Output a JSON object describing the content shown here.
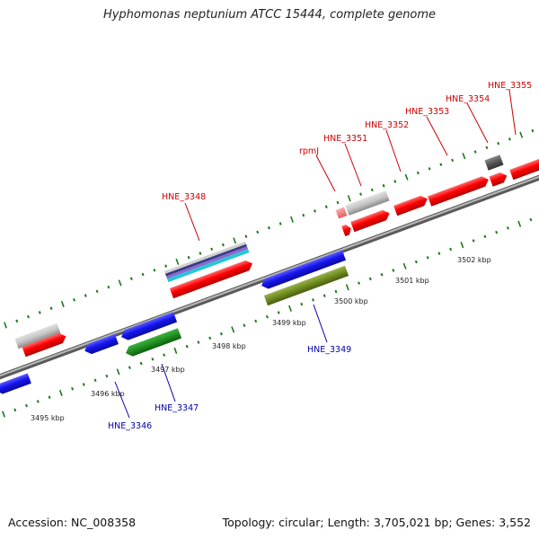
{
  "header": {
    "title": "Hyphomonas neptunium ATCC 15444, complete genome"
  },
  "footer": {
    "accession": "Accession: NC_008358",
    "summary": "Topology: circular; Length: 3,705,021 bp; Genes: 3,552"
  },
  "colors": {
    "forward_gene": "#ff0000",
    "reverse_gene": "#1515e0",
    "rna_gene": "#bbbbbb",
    "olive_gene": "#708b1e",
    "green_gene": "#1f8f1f",
    "dark_gene": "#555555",
    "tick": "#1a7a1a",
    "forward_label": "#cc0000",
    "reverse_label": "#0000aa",
    "backbone": "#8a8a8a"
  },
  "kbp_labels": [
    "3495 kbp",
    "3496 kbp",
    "3497 kbp",
    "3498 kbp",
    "3499 kbp",
    "3500 kbp",
    "3501 kbp",
    "3502 kbp"
  ],
  "forward_labels": [
    "HNE_3348",
    "rpmJ",
    "HNE_3351",
    "HNE_3352",
    "HNE_3353",
    "HNE_3354",
    "HNE_3355"
  ],
  "reverse_labels": [
    "HNE_3346",
    "HNE_3347",
    "HNE_3349"
  ]
}
